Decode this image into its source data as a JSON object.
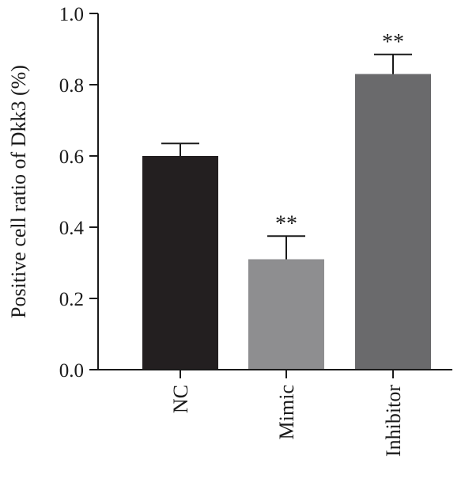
{
  "chart_data": {
    "type": "bar",
    "title": "",
    "xlabel": "",
    "ylabel": "Positive cell ratio of Dkk3 (%)",
    "ylim": [
      0.0,
      1.0
    ],
    "yticks": [
      "0.0",
      "0.2",
      "0.4",
      "0.6",
      "0.8",
      "1.0"
    ],
    "grid": false,
    "categories": [
      "NC",
      "Mimic",
      "Inhibitor"
    ],
    "values": [
      0.6,
      0.31,
      0.83
    ],
    "error_upper": [
      0.035,
      0.065,
      0.055
    ],
    "significance": [
      "",
      "**",
      "**"
    ],
    "colors": [
      "#231f20",
      "#8e8e90",
      "#6a6a6c"
    ]
  }
}
